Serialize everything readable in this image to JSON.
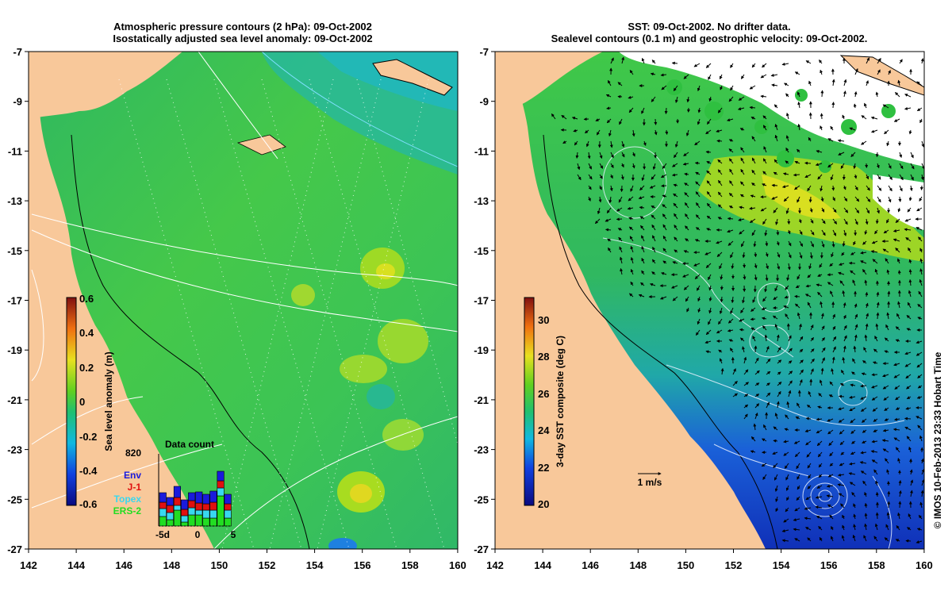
{
  "left_panel": {
    "title_line1": "Atmospheric pressure contours (2 hPa): 09-Oct-2002",
    "title_line2": "Isostatically adjusted sea level anomaly: 09-Oct-2002",
    "colorbar": {
      "label": "Sea level anomaly (m)",
      "ticks": [
        "0.6",
        "0.4",
        "0.2",
        "0",
        "-0.2",
        "-0.4",
        "-0.6"
      ]
    },
    "data_count": {
      "title": "Data count",
      "max_label": "820",
      "x_ticks": [
        "-5d",
        "0",
        "5"
      ],
      "legend": [
        {
          "label": "Env",
          "color": "#1a1adc"
        },
        {
          "label": "J-1",
          "color": "#e01010"
        },
        {
          "label": "Topex",
          "color": "#38d8f0"
        },
        {
          "label": "ERS-2",
          "color": "#22dd22"
        }
      ]
    }
  },
  "right_panel": {
    "title_line1": "SST: 09-Oct-2002. No drifter data.",
    "title_line2": "Sealevel contours (0.1 m) and geostrophic velocity: 09-Oct-2002.",
    "colorbar": {
      "label": "3-day SST composite (deg C)",
      "ticks": [
        "30",
        "28",
        "26",
        "24",
        "22",
        "20"
      ]
    },
    "scale_label": "1 m/s"
  },
  "axes": {
    "lat_ticks": [
      "-7",
      "-9",
      "-11",
      "-13",
      "-15",
      "-17",
      "-19",
      "-21",
      "-23",
      "-25",
      "-27"
    ],
    "lon_ticks": [
      "142",
      "144",
      "146",
      "148",
      "150",
      "152",
      "154",
      "156",
      "158",
      "160"
    ]
  },
  "credit": "© IMOS 10-Feb-2013 23:33 Hobart Time",
  "colors": {
    "land": "#f8c89a",
    "sea_green": "#2fc05a",
    "sea_teal": "#1fb8a0",
    "sst_blue": "#1a4fd8"
  }
}
